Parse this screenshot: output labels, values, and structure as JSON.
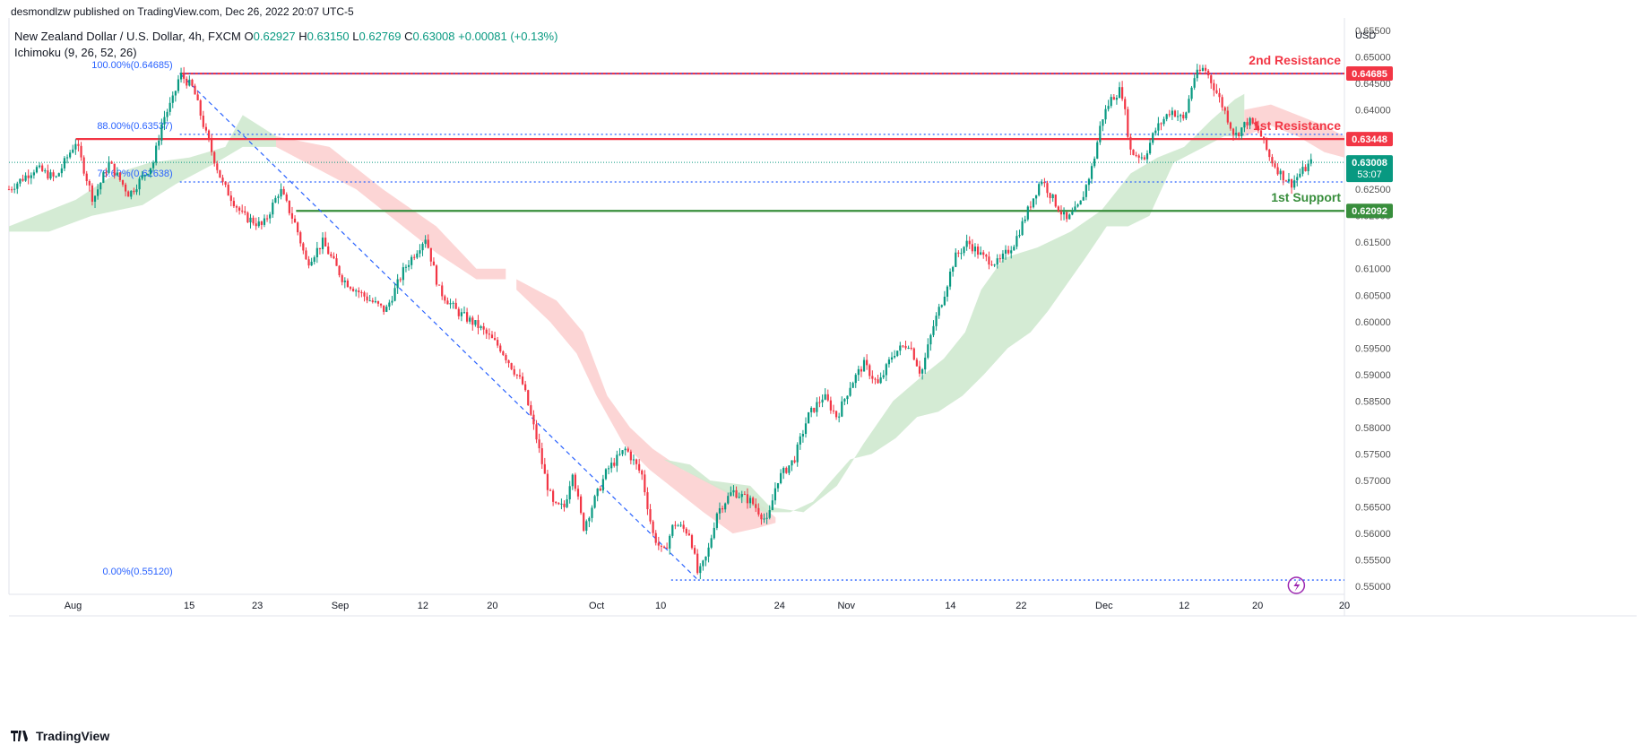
{
  "header": {
    "published": "desmondlzw published on TradingView.com, Dec 26, 2022 20:07 UTC-5"
  },
  "legend": {
    "symbol": "New Zealand Dollar / U.S. Dollar, 4h, FXCM",
    "open_key": "O",
    "open": "0.62927",
    "high_key": "H",
    "high": "0.63150",
    "low_key": "L",
    "low": "0.62769",
    "close_key": "C",
    "close": "0.63008",
    "change": "+0.00081 (+0.13%)",
    "indicator": "Ichimoku (9, 26, 52, 26)"
  },
  "footer": {
    "brand": "TradingView"
  },
  "colors": {
    "up": "#089981",
    "down": "#f23645",
    "resistance": "#f23645",
    "support": "#388e3c",
    "fib": "#2962ff",
    "cloud_bull": "#cfe9cf",
    "cloud_bear": "#fcd0d0"
  },
  "chart_data": {
    "type": "candlestick",
    "currency_label": "USD",
    "y_range": [
      0.5485,
      0.656
    ],
    "y_ticks": [
      "0.65500",
      "0.65000",
      "0.64500",
      "0.64000",
      "0.63500",
      "0.63000",
      "0.62500",
      "0.62000",
      "0.61500",
      "0.61000",
      "0.60500",
      "0.60000",
      "0.59500",
      "0.59000",
      "0.58500",
      "0.58000",
      "0.57500",
      "0.57000",
      "0.56500",
      "0.56000",
      "0.55500",
      "0.55000"
    ],
    "x_range": [
      0,
      100
    ],
    "x_ticks": [
      {
        "label": "Aug",
        "x": 4.8
      },
      {
        "label": "15",
        "x": 13.5
      },
      {
        "label": "23",
        "x": 18.6
      },
      {
        "label": "Sep",
        "x": 24.8
      },
      {
        "label": "12",
        "x": 31.0
      },
      {
        "label": "20",
        "x": 36.2
      },
      {
        "label": "Oct",
        "x": 44.0
      },
      {
        "label": "10",
        "x": 48.8
      },
      {
        "label": "24",
        "x": 57.7
      },
      {
        "label": "Nov",
        "x": 62.7
      },
      {
        "label": "14",
        "x": 70.5
      },
      {
        "label": "22",
        "x": 75.8
      },
      {
        "label": "Dec",
        "x": 82.0
      },
      {
        "label": "12",
        "x": 88.0
      },
      {
        "label": "20",
        "x": 93.5
      },
      {
        "label": "20",
        "x": 100.0
      }
    ],
    "price_path": [
      [
        0,
        0.625
      ],
      [
        2,
        0.629
      ],
      [
        3.5,
        0.627
      ],
      [
        5,
        0.634
      ],
      [
        6.3,
        0.623
      ],
      [
        7.5,
        0.63
      ],
      [
        9,
        0.624
      ],
      [
        10.8,
        0.63
      ],
      [
        11.5,
        0.638
      ],
      [
        12.3,
        0.642
      ],
      [
        12.8,
        0.6468
      ],
      [
        13.8,
        0.644
      ],
      [
        14.8,
        0.635
      ],
      [
        16,
        0.626
      ],
      [
        17.5,
        0.62
      ],
      [
        19,
        0.618
      ],
      [
        20.3,
        0.625
      ],
      [
        21.5,
        0.618
      ],
      [
        22.3,
        0.611
      ],
      [
        23.5,
        0.615
      ],
      [
        25,
        0.608
      ],
      [
        26.5,
        0.605
      ],
      [
        28.2,
        0.602
      ],
      [
        29.6,
        0.61
      ],
      [
        31.2,
        0.616
      ],
      [
        32.2,
        0.606
      ],
      [
        33.5,
        0.602
      ],
      [
        35.2,
        0.599
      ],
      [
        36.8,
        0.595
      ],
      [
        38.5,
        0.588
      ],
      [
        39.5,
        0.578
      ],
      [
        40.2,
        0.57
      ],
      [
        40.8,
        0.565
      ],
      [
        41.6,
        0.565
      ],
      [
        42.2,
        0.572
      ],
      [
        43,
        0.561
      ],
      [
        43.8,
        0.566
      ],
      [
        44.8,
        0.572
      ],
      [
        46.2,
        0.576
      ],
      [
        47.4,
        0.571
      ],
      [
        48.2,
        0.56
      ],
      [
        49,
        0.556
      ],
      [
        49.8,
        0.562
      ],
      [
        51,
        0.56
      ],
      [
        51.6,
        0.552
      ],
      [
        52.3,
        0.556
      ],
      [
        53,
        0.564
      ],
      [
        54.2,
        0.568
      ],
      [
        55.6,
        0.566
      ],
      [
        56.8,
        0.562
      ],
      [
        57.5,
        0.57
      ],
      [
        58.8,
        0.574
      ],
      [
        59.8,
        0.582
      ],
      [
        61,
        0.586
      ],
      [
        62,
        0.582
      ],
      [
        63,
        0.588
      ],
      [
        64,
        0.592
      ],
      [
        65.1,
        0.588
      ],
      [
        66.2,
        0.594
      ],
      [
        67.4,
        0.596
      ],
      [
        68.3,
        0.59
      ],
      [
        69.2,
        0.599
      ],
      [
        70,
        0.605
      ],
      [
        70.8,
        0.612
      ],
      [
        71.8,
        0.615
      ],
      [
        73,
        0.612
      ],
      [
        74.1,
        0.611
      ],
      [
        75.3,
        0.615
      ],
      [
        76.3,
        0.621
      ],
      [
        77.3,
        0.627
      ],
      [
        78.2,
        0.623
      ],
      [
        79.2,
        0.619
      ],
      [
        80.2,
        0.622
      ],
      [
        81.2,
        0.63
      ],
      [
        81.8,
        0.638
      ],
      [
        82.5,
        0.642
      ],
      [
        83.3,
        0.644
      ],
      [
        84,
        0.632
      ],
      [
        85,
        0.631
      ],
      [
        85.8,
        0.636
      ],
      [
        87,
        0.64
      ],
      [
        88,
        0.638
      ],
      [
        88.7,
        0.646
      ],
      [
        89.5,
        0.648
      ],
      [
        90.3,
        0.644
      ],
      [
        91,
        0.64
      ],
      [
        91.8,
        0.635
      ],
      [
        92.8,
        0.638
      ],
      [
        93.6,
        0.636
      ],
      [
        94.4,
        0.631
      ],
      [
        95.2,
        0.628
      ],
      [
        96,
        0.626
      ],
      [
        96.7,
        0.628
      ],
      [
        97.5,
        0.63
      ]
    ],
    "ichimoku_cloud": [
      {
        "trend": "bull",
        "points": [
          [
            0,
            0.618
          ],
          [
            5,
            0.623
          ],
          [
            8,
            0.628
          ],
          [
            10.5,
            0.63
          ],
          [
            13.5,
            0.631
          ],
          [
            16.2,
            0.633
          ],
          [
            17.5,
            0.639
          ],
          [
            20,
            0.635
          ]
        ],
        "lower": [
          [
            20,
            0.633
          ],
          [
            17.5,
            0.633
          ],
          [
            15.5,
            0.63
          ],
          [
            12.5,
            0.626
          ],
          [
            10,
            0.622
          ],
          [
            6.2,
            0.62
          ],
          [
            3,
            0.617
          ],
          [
            0,
            0.617
          ]
        ]
      },
      {
        "trend": "bear",
        "points": [
          [
            20,
            0.635
          ],
          [
            24,
            0.633
          ],
          [
            28,
            0.625
          ],
          [
            32,
            0.618
          ],
          [
            35,
            0.61
          ],
          [
            37.2,
            0.61
          ]
        ],
        "lower": [
          [
            37.2,
            0.608
          ],
          [
            35,
            0.608
          ],
          [
            32,
            0.613
          ],
          [
            29,
            0.619
          ],
          [
            26,
            0.625
          ],
          [
            23,
            0.629
          ],
          [
            20,
            0.633
          ]
        ]
      },
      {
        "trend": "bear",
        "points": [
          [
            38,
            0.608
          ],
          [
            41,
            0.604
          ],
          [
            43,
            0.598
          ],
          [
            44.8,
            0.586
          ],
          [
            46.5,
            0.58
          ],
          [
            48.2,
            0.576
          ],
          [
            50.5,
            0.572
          ],
          [
            53,
            0.569
          ],
          [
            56.5,
            0.565
          ],
          [
            57.4,
            0.563
          ]
        ],
        "lower": [
          [
            57.4,
            0.562
          ],
          [
            56,
            0.561
          ],
          [
            54.2,
            0.56
          ],
          [
            52,
            0.564
          ],
          [
            50,
            0.568
          ],
          [
            48,
            0.572
          ],
          [
            46,
            0.577
          ],
          [
            44,
            0.586
          ],
          [
            42.5,
            0.594
          ],
          [
            40.5,
            0.6
          ],
          [
            38,
            0.606
          ]
        ]
      },
      {
        "trend": "bull",
        "points": [
          [
            49,
            0.574
          ],
          [
            51,
            0.573
          ],
          [
            52.5,
            0.57
          ],
          [
            55.5,
            0.569
          ],
          [
            57,
            0.565
          ],
          [
            59.5,
            0.564
          ],
          [
            62,
            0.569
          ],
          [
            64,
            0.577
          ],
          [
            66.2,
            0.585
          ],
          [
            68.5,
            0.59
          ],
          [
            70,
            0.593
          ],
          [
            71.6,
            0.598
          ],
          [
            72.8,
            0.606
          ],
          [
            74.5,
            0.612
          ],
          [
            77,
            0.614
          ],
          [
            79.5,
            0.617
          ],
          [
            81.8,
            0.621
          ],
          [
            84,
            0.628
          ],
          [
            86,
            0.631
          ],
          [
            88,
            0.633
          ],
          [
            90,
            0.638
          ],
          [
            91.8,
            0.642
          ],
          [
            92.5,
            0.643
          ]
        ],
        "lower": [
          [
            92.5,
            0.635
          ],
          [
            91,
            0.635
          ],
          [
            89.5,
            0.633
          ],
          [
            87.2,
            0.63
          ],
          [
            85.4,
            0.62
          ],
          [
            83.8,
            0.618
          ],
          [
            82.2,
            0.618
          ],
          [
            80.6,
            0.612
          ],
          [
            79.2,
            0.607
          ],
          [
            77.8,
            0.602
          ],
          [
            76.5,
            0.598
          ],
          [
            74.8,
            0.595
          ],
          [
            73,
            0.59
          ],
          [
            71.4,
            0.586
          ],
          [
            69.6,
            0.583
          ],
          [
            68,
            0.582
          ],
          [
            66.4,
            0.578
          ],
          [
            64.6,
            0.575
          ],
          [
            63,
            0.574
          ],
          [
            61.6,
            0.57
          ],
          [
            60.2,
            0.566
          ],
          [
            58.5,
            0.564
          ],
          [
            56.5,
            0.564
          ]
        ]
      },
      {
        "trend": "bear",
        "points": [
          [
            92.5,
            0.64
          ],
          [
            94.5,
            0.641
          ],
          [
            96.5,
            0.639
          ],
          [
            98.5,
            0.637
          ],
          [
            100,
            0.635
          ]
        ],
        "lower": [
          [
            100,
            0.631
          ],
          [
            98.5,
            0.632
          ],
          [
            96.5,
            0.635
          ],
          [
            94.5,
            0.637
          ],
          [
            92.5,
            0.635
          ]
        ]
      }
    ],
    "levels": [
      {
        "name": "2nd Resistance",
        "price": "0.64685",
        "value": 0.64685,
        "type": "resistance",
        "x_start": 12.8
      },
      {
        "name": "1st Resistance",
        "price": "0.63448",
        "value": 0.63448,
        "type": "resistance",
        "x_start": 5.0
      },
      {
        "name": "1st Support",
        "price": "0.62092",
        "value": 0.62092,
        "type": "support",
        "x_start": 21.5
      }
    ],
    "current_price": {
      "price": "0.63008",
      "value": 0.63008,
      "countdown": "53:07"
    },
    "fib_levels": [
      {
        "label": "100.00%(0.64685)",
        "value": 0.64685
      },
      {
        "label": "88.00%(0.63537)",
        "value": 0.63537
      },
      {
        "label": "78.60%(0.62638)",
        "value": 0.62638
      },
      {
        "label": "0.00%(0.55120)",
        "value": 0.5512
      }
    ],
    "fib_trend": {
      "from": [
        12.8,
        0.64685
      ],
      "to": [
        51.6,
        0.5512
      ]
    }
  }
}
